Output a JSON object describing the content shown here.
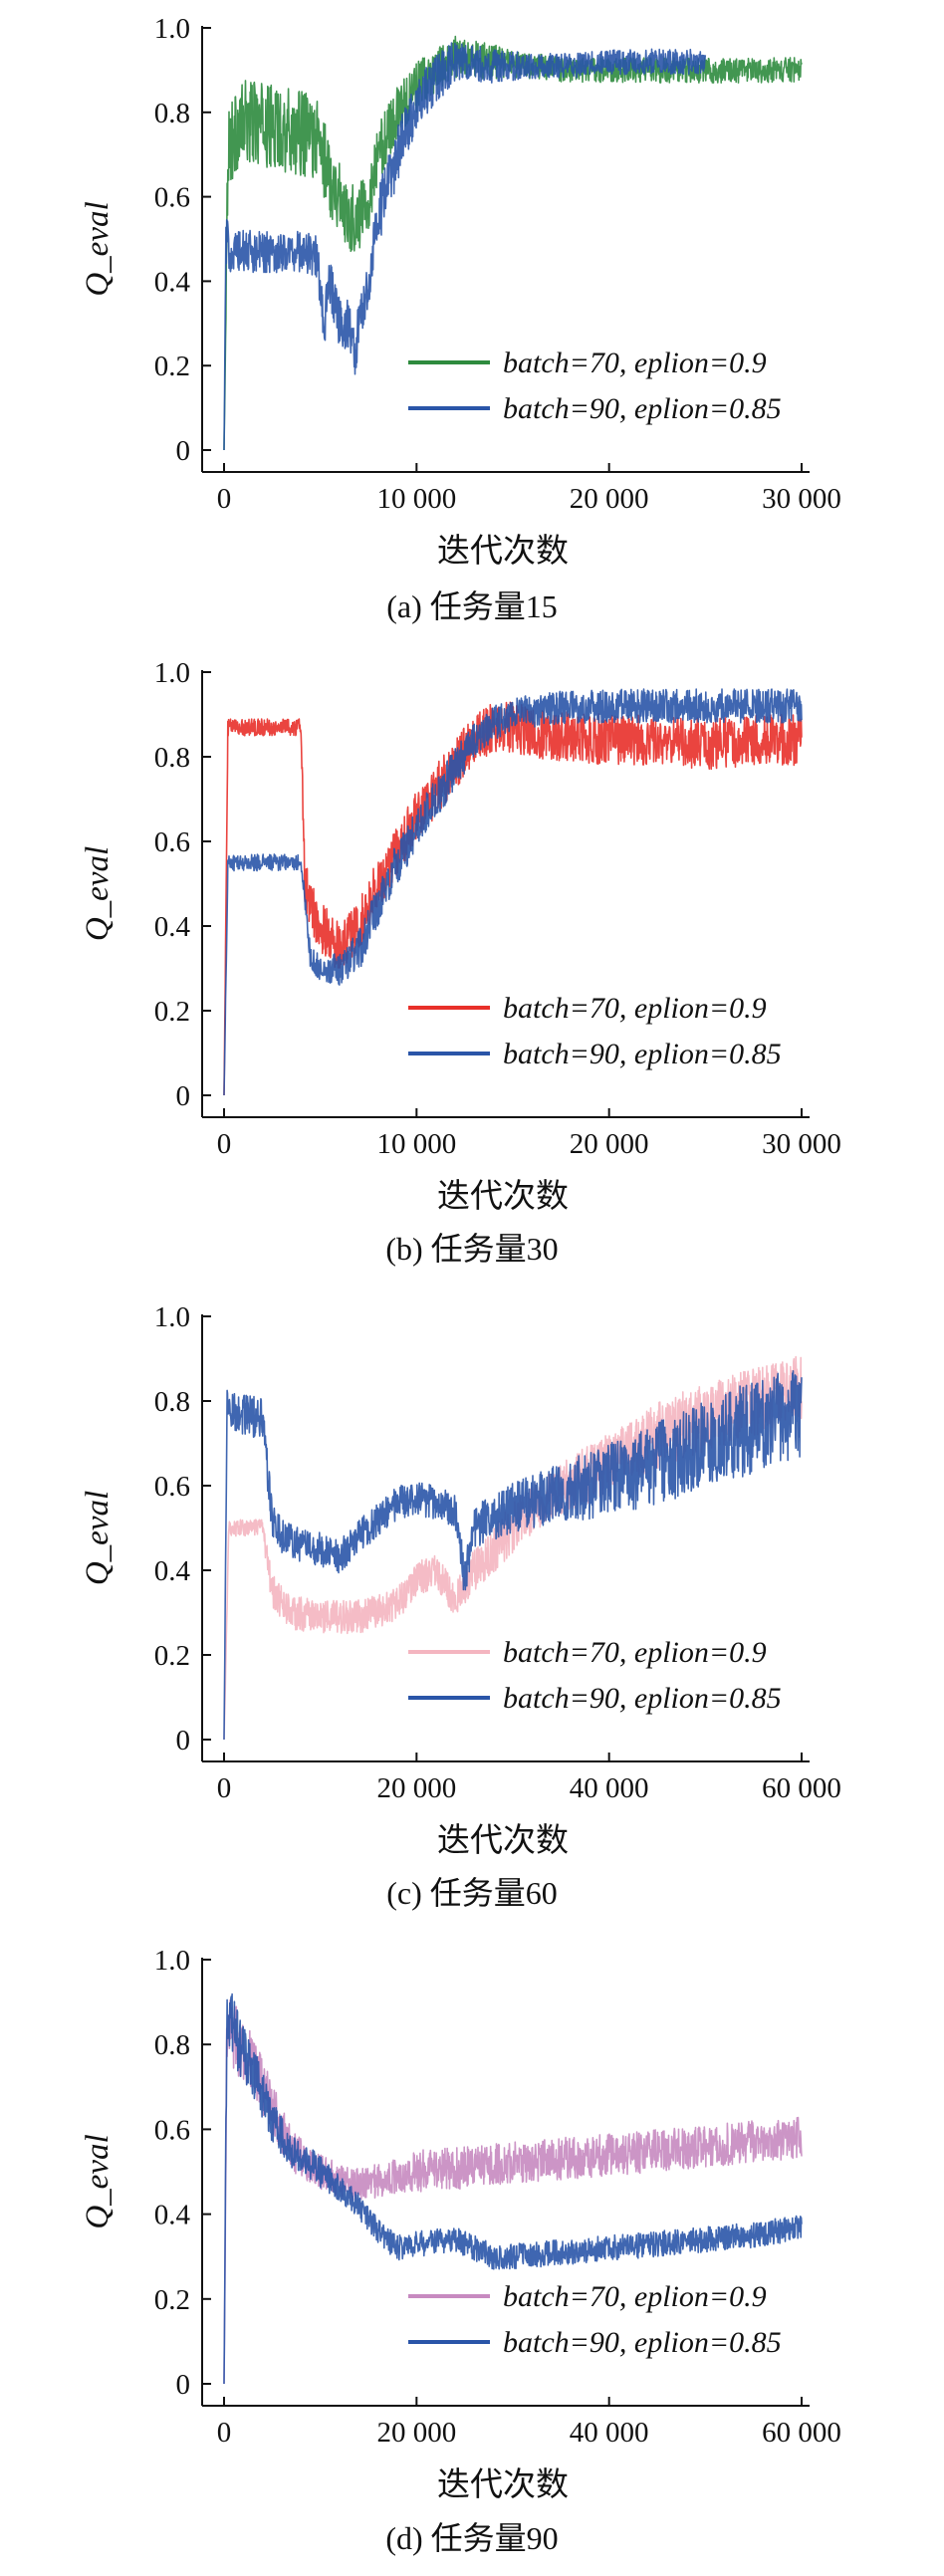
{
  "chart_data": [
    {
      "type": "line",
      "caption": "(a) 任务量15",
      "xlabel": "迭代次数",
      "ylabel": "Q_eval",
      "xlim": [
        0,
        30000
      ],
      "ylim": [
        0,
        1.0
      ],
      "xticks": [
        0,
        10000,
        20000,
        30000
      ],
      "xtick_labels": [
        "0",
        "10 000",
        "20 000",
        "30 000"
      ],
      "yticks": [
        0,
        0.2,
        0.4,
        0.6,
        0.8,
        1.0
      ],
      "ytick_labels": [
        "0",
        "0.2",
        "0.4",
        "0.6",
        "0.8",
        "1.0"
      ],
      "legend_position": "lower-right",
      "series": [
        {
          "name": "batch=70, eplion=0.9",
          "color": "#2e8b3e",
          "x": [
            0,
            200,
            600,
            1200,
            2000,
            3000,
            4000,
            4800,
            5500,
            6000,
            6500,
            7000,
            7500,
            8000,
            9000,
            10000,
            11000,
            12000,
            14000,
            16000,
            18000,
            20000,
            22000,
            24000,
            26000,
            28000,
            30000
          ],
          "y": [
            0.0,
            0.72,
            0.75,
            0.78,
            0.77,
            0.76,
            0.75,
            0.74,
            0.65,
            0.6,
            0.55,
            0.55,
            0.6,
            0.7,
            0.8,
            0.86,
            0.9,
            0.93,
            0.92,
            0.91,
            0.9,
            0.9,
            0.9,
            0.9,
            0.9,
            0.9,
            0.9
          ],
          "spread": [
            0,
            0.1,
            0.1,
            0.1,
            0.1,
            0.1,
            0.1,
            0.1,
            0.1,
            0.08,
            0.08,
            0.08,
            0.08,
            0.07,
            0.06,
            0.06,
            0.05,
            0.05,
            0.04,
            0.03,
            0.03,
            0.03,
            0.03,
            0.03,
            0.03,
            0.03,
            0.03
          ]
        },
        {
          "name": "batch=90, eplion=0.85",
          "color": "#2a55a8",
          "x": [
            0,
            100,
            300,
            1000,
            2000,
            3000,
            4000,
            4800,
            5200,
            5500,
            6000,
            6500,
            6800,
            7000,
            7500,
            8000,
            9000,
            10000,
            11000,
            12000,
            14000,
            16000,
            18000,
            20000,
            22000,
            24000,
            25000
          ],
          "y": [
            0.0,
            0.5,
            0.47,
            0.47,
            0.47,
            0.47,
            0.47,
            0.46,
            0.3,
            0.4,
            0.3,
            0.3,
            0.22,
            0.3,
            0.4,
            0.55,
            0.7,
            0.82,
            0.88,
            0.92,
            0.91,
            0.91,
            0.91,
            0.92,
            0.92,
            0.92,
            0.92
          ],
          "spread": [
            0,
            0.06,
            0.05,
            0.05,
            0.05,
            0.05,
            0.05,
            0.05,
            0.06,
            0.06,
            0.06,
            0.06,
            0.06,
            0.06,
            0.07,
            0.07,
            0.07,
            0.06,
            0.06,
            0.05,
            0.04,
            0.03,
            0.03,
            0.03,
            0.03,
            0.03,
            0.03
          ]
        }
      ]
    },
    {
      "type": "line",
      "caption": "(b) 任务量30",
      "xlabel": "迭代次数",
      "ylabel": "Q_eval",
      "xlim": [
        0,
        30000
      ],
      "ylim": [
        0,
        1.0
      ],
      "xticks": [
        0,
        10000,
        20000,
        30000
      ],
      "xtick_labels": [
        "0",
        "10 000",
        "20 000",
        "30 000"
      ],
      "yticks": [
        0,
        0.2,
        0.4,
        0.6,
        0.8,
        1.0
      ],
      "ytick_labels": [
        "0",
        "0.2",
        "0.4",
        "0.6",
        "0.8",
        "1.0"
      ],
      "legend_position": "lower-right",
      "series": [
        {
          "name": "batch=70, eplion=0.9",
          "color": "#e8302a",
          "x": [
            0,
            200,
            1000,
            2000,
            3000,
            4000,
            4200,
            4500,
            5000,
            6000,
            7000,
            8000,
            9000,
            10000,
            11000,
            12000,
            13000,
            14000,
            15000,
            17000,
            20000,
            22000,
            25000,
            28000,
            30000
          ],
          "y": [
            0.0,
            0.87,
            0.87,
            0.87,
            0.87,
            0.87,
            0.5,
            0.45,
            0.4,
            0.35,
            0.4,
            0.5,
            0.58,
            0.66,
            0.72,
            0.78,
            0.84,
            0.87,
            0.87,
            0.85,
            0.84,
            0.84,
            0.83,
            0.84,
            0.84
          ],
          "spread": [
            0,
            0.02,
            0.02,
            0.02,
            0.02,
            0.02,
            0.06,
            0.06,
            0.06,
            0.06,
            0.06,
            0.06,
            0.06,
            0.06,
            0.06,
            0.06,
            0.06,
            0.06,
            0.06,
            0.06,
            0.06,
            0.06,
            0.06,
            0.06,
            0.06
          ]
        },
        {
          "name": "batch=90, eplion=0.85",
          "color": "#2a55a8",
          "x": [
            0,
            200,
            1000,
            2000,
            3000,
            4000,
            4500,
            5000,
            6000,
            7000,
            8000,
            9000,
            10000,
            11000,
            12000,
            13000,
            14000,
            15000,
            16000,
            18000,
            20000,
            22000,
            25000,
            28000,
            30000
          ],
          "y": [
            0.0,
            0.55,
            0.55,
            0.55,
            0.55,
            0.55,
            0.32,
            0.3,
            0.3,
            0.34,
            0.45,
            0.55,
            0.63,
            0.7,
            0.77,
            0.84,
            0.88,
            0.9,
            0.91,
            0.92,
            0.92,
            0.92,
            0.92,
            0.92,
            0.92
          ],
          "spread": [
            0,
            0.02,
            0.02,
            0.02,
            0.02,
            0.02,
            0.03,
            0.03,
            0.04,
            0.05,
            0.05,
            0.05,
            0.05,
            0.05,
            0.05,
            0.04,
            0.04,
            0.04,
            0.04,
            0.04,
            0.04,
            0.04,
            0.04,
            0.04,
            0.04
          ]
        }
      ]
    },
    {
      "type": "line",
      "caption": "(c) 任务量60",
      "xlabel": "迭代次数",
      "ylabel": "Q_eval",
      "xlim": [
        0,
        60000
      ],
      "ylim": [
        0,
        1.0
      ],
      "xticks": [
        0,
        20000,
        40000,
        60000
      ],
      "xtick_labels": [
        "0",
        "20 000",
        "40 000",
        "60 000"
      ],
      "yticks": [
        0,
        0.2,
        0.4,
        0.6,
        0.8,
        1.0
      ],
      "ytick_labels": [
        "0",
        "0.2",
        "0.4",
        "0.6",
        "0.8",
        "1.0"
      ],
      "legend_position": "lower-right",
      "series": [
        {
          "name": "batch=70, eplion=0.9",
          "color": "#f4b5c0",
          "x": [
            0,
            500,
            2000,
            4000,
            5000,
            7000,
            10000,
            14000,
            18000,
            20000,
            22000,
            24000,
            26000,
            30000,
            34000,
            38000,
            42000,
            46000,
            50000,
            54000,
            58000,
            60000
          ],
          "y": [
            0.0,
            0.5,
            0.5,
            0.5,
            0.35,
            0.3,
            0.29,
            0.29,
            0.32,
            0.38,
            0.4,
            0.33,
            0.4,
            0.5,
            0.58,
            0.63,
            0.68,
            0.73,
            0.76,
            0.79,
            0.82,
            0.83
          ],
          "spread": [
            0,
            0.02,
            0.02,
            0.02,
            0.04,
            0.04,
            0.04,
            0.04,
            0.04,
            0.04,
            0.04,
            0.04,
            0.05,
            0.06,
            0.06,
            0.07,
            0.07,
            0.08,
            0.08,
            0.08,
            0.08,
            0.08
          ]
        },
        {
          "name": "batch=90, eplion=0.85",
          "color": "#2a55a8",
          "x": [
            0,
            300,
            2000,
            4000,
            5000,
            6000,
            8000,
            10000,
            12000,
            14000,
            16000,
            18000,
            20000,
            22000,
            24000,
            25000,
            26000,
            30000,
            34000,
            38000,
            42000,
            46000,
            50000,
            54000,
            58000,
            60000
          ],
          "y": [
            0.0,
            0.78,
            0.77,
            0.76,
            0.52,
            0.48,
            0.46,
            0.45,
            0.43,
            0.48,
            0.52,
            0.56,
            0.57,
            0.56,
            0.54,
            0.38,
            0.5,
            0.55,
            0.58,
            0.6,
            0.63,
            0.66,
            0.7,
            0.73,
            0.76,
            0.78
          ],
          "spread": [
            0,
            0.05,
            0.05,
            0.05,
            0.04,
            0.04,
            0.04,
            0.04,
            0.04,
            0.04,
            0.04,
            0.04,
            0.04,
            0.04,
            0.04,
            0.05,
            0.05,
            0.06,
            0.07,
            0.08,
            0.09,
            0.1,
            0.1,
            0.11,
            0.11,
            0.11
          ]
        }
      ]
    },
    {
      "type": "line",
      "caption": "(d) 任务量90",
      "xlabel": "迭代次数",
      "ylabel": "Q_eval",
      "xlim": [
        0,
        60000
      ],
      "ylim": [
        0,
        1.0
      ],
      "xticks": [
        0,
        20000,
        40000,
        60000
      ],
      "xtick_labels": [
        "0",
        "20 000",
        "40 000",
        "60 000"
      ],
      "yticks": [
        0,
        0.2,
        0.4,
        0.6,
        0.8,
        1.0
      ],
      "ytick_labels": [
        "0",
        "0.2",
        "0.4",
        "0.6",
        "0.8",
        "1.0"
      ],
      "legend_position": "lower-right",
      "series": [
        {
          "name": "batch=70, eplion=0.9",
          "color": "#c78ac0",
          "x": [
            0,
            300,
            1500,
            3000,
            5000,
            7000,
            10000,
            12000,
            14000,
            16000,
            18000,
            20000,
            25000,
            30000,
            35000,
            40000,
            45000,
            50000,
            55000,
            60000
          ],
          "y": [
            0.0,
            0.85,
            0.8,
            0.75,
            0.65,
            0.55,
            0.5,
            0.48,
            0.47,
            0.48,
            0.49,
            0.5,
            0.51,
            0.52,
            0.53,
            0.54,
            0.55,
            0.56,
            0.57,
            0.58
          ],
          "spread": [
            0,
            0.08,
            0.08,
            0.07,
            0.06,
            0.05,
            0.04,
            0.04,
            0.04,
            0.04,
            0.04,
            0.05,
            0.05,
            0.05,
            0.05,
            0.05,
            0.05,
            0.05,
            0.05,
            0.05
          ]
        },
        {
          "name": "batch=90, eplion=0.85",
          "color": "#2a55a8",
          "x": [
            0,
            300,
            1500,
            3000,
            5000,
            7000,
            10000,
            12000,
            14000,
            16000,
            18000,
            20000,
            24000,
            28000,
            30000,
            35000,
            40000,
            45000,
            50000,
            55000,
            60000
          ],
          "y": [
            0.0,
            0.88,
            0.8,
            0.74,
            0.62,
            0.55,
            0.5,
            0.46,
            0.42,
            0.36,
            0.32,
            0.33,
            0.34,
            0.3,
            0.3,
            0.31,
            0.32,
            0.33,
            0.34,
            0.35,
            0.37
          ],
          "spread": [
            0,
            0.08,
            0.07,
            0.06,
            0.05,
            0.04,
            0.04,
            0.03,
            0.03,
            0.03,
            0.03,
            0.03,
            0.03,
            0.03,
            0.03,
            0.03,
            0.03,
            0.03,
            0.03,
            0.03,
            0.03
          ]
        }
      ]
    }
  ]
}
